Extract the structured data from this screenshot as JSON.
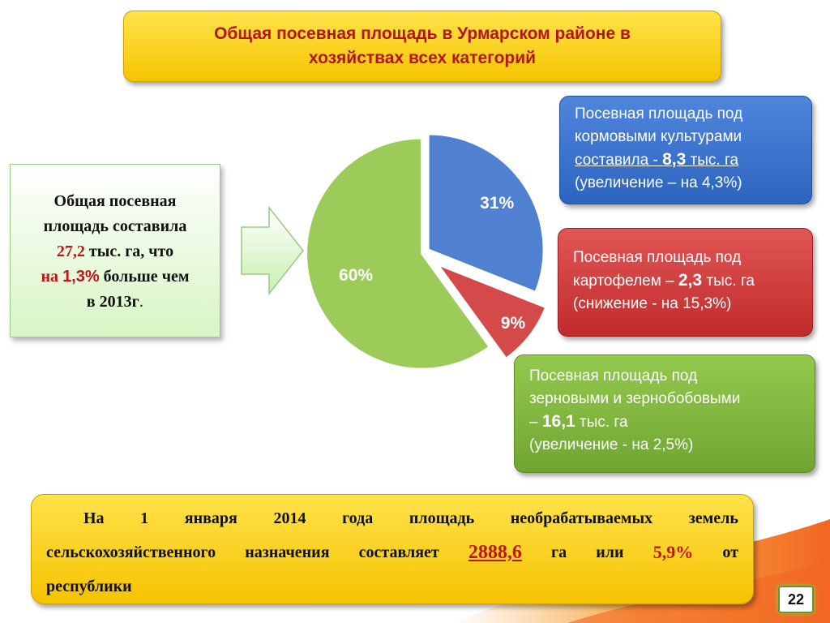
{
  "title": {
    "line1": "Общая посевная площадь в Урмарском районе в",
    "line2": "хозяйствах всех категорий"
  },
  "left_box": {
    "l1": "Общая посевная",
    "l2": "площадь  составила",
    "value": "27,2",
    "l3_rest": " тыс. га, что",
    "l4_prefix": "на ",
    "pct": "1,3%",
    "l4_rest": " больше чем",
    "l5": "в 2013г",
    "l5_dot": "."
  },
  "callouts": {
    "blue": {
      "l1": "Посевная площадь под",
      "l2": "кормовыми культурами",
      "l3_prefix": "составила - ",
      "value": "8,3",
      "unit": " тыс. га",
      "l4": "(увеличение – на 4,3%)"
    },
    "red": {
      "l1": "Посевная площадь под",
      "l2_prefix": "картофелем – ",
      "value": "2,3",
      "unit": " тыс. га",
      "l3": "(снижение - на 15,3%)"
    },
    "green": {
      "l1": "Посевная площадь под",
      "l2": "зерновыми и зернобобовыми",
      "l3_prefix": "– ",
      "value": "16,1",
      "unit": " тыс. га",
      "l4": "(увеличение - на 2,5%)"
    }
  },
  "bottom": {
    "w1": "На",
    "w2": "1",
    "w3": "января",
    "w4": "2014",
    "w5": "года",
    "w6": "площадь",
    "w7": "необрабатываемых",
    "w8": "земель",
    "w9": "сельскохозяйственного",
    "w10": "назначения",
    "w11": "составляет",
    "area": "2888,6",
    "w12": "га",
    "w13": "или",
    "pct": "5,9%",
    "w14": "от",
    "w15": "республики"
  },
  "page_number": "22",
  "chart_data": {
    "type": "pie",
    "slices": [
      {
        "label": "31%",
        "value": 31,
        "color": "#4f81d0"
      },
      {
        "label": "9%",
        "value": 9,
        "color": "#d44a4a"
      },
      {
        "label": "60%",
        "value": 60,
        "color": "#9ccb5a"
      }
    ]
  }
}
